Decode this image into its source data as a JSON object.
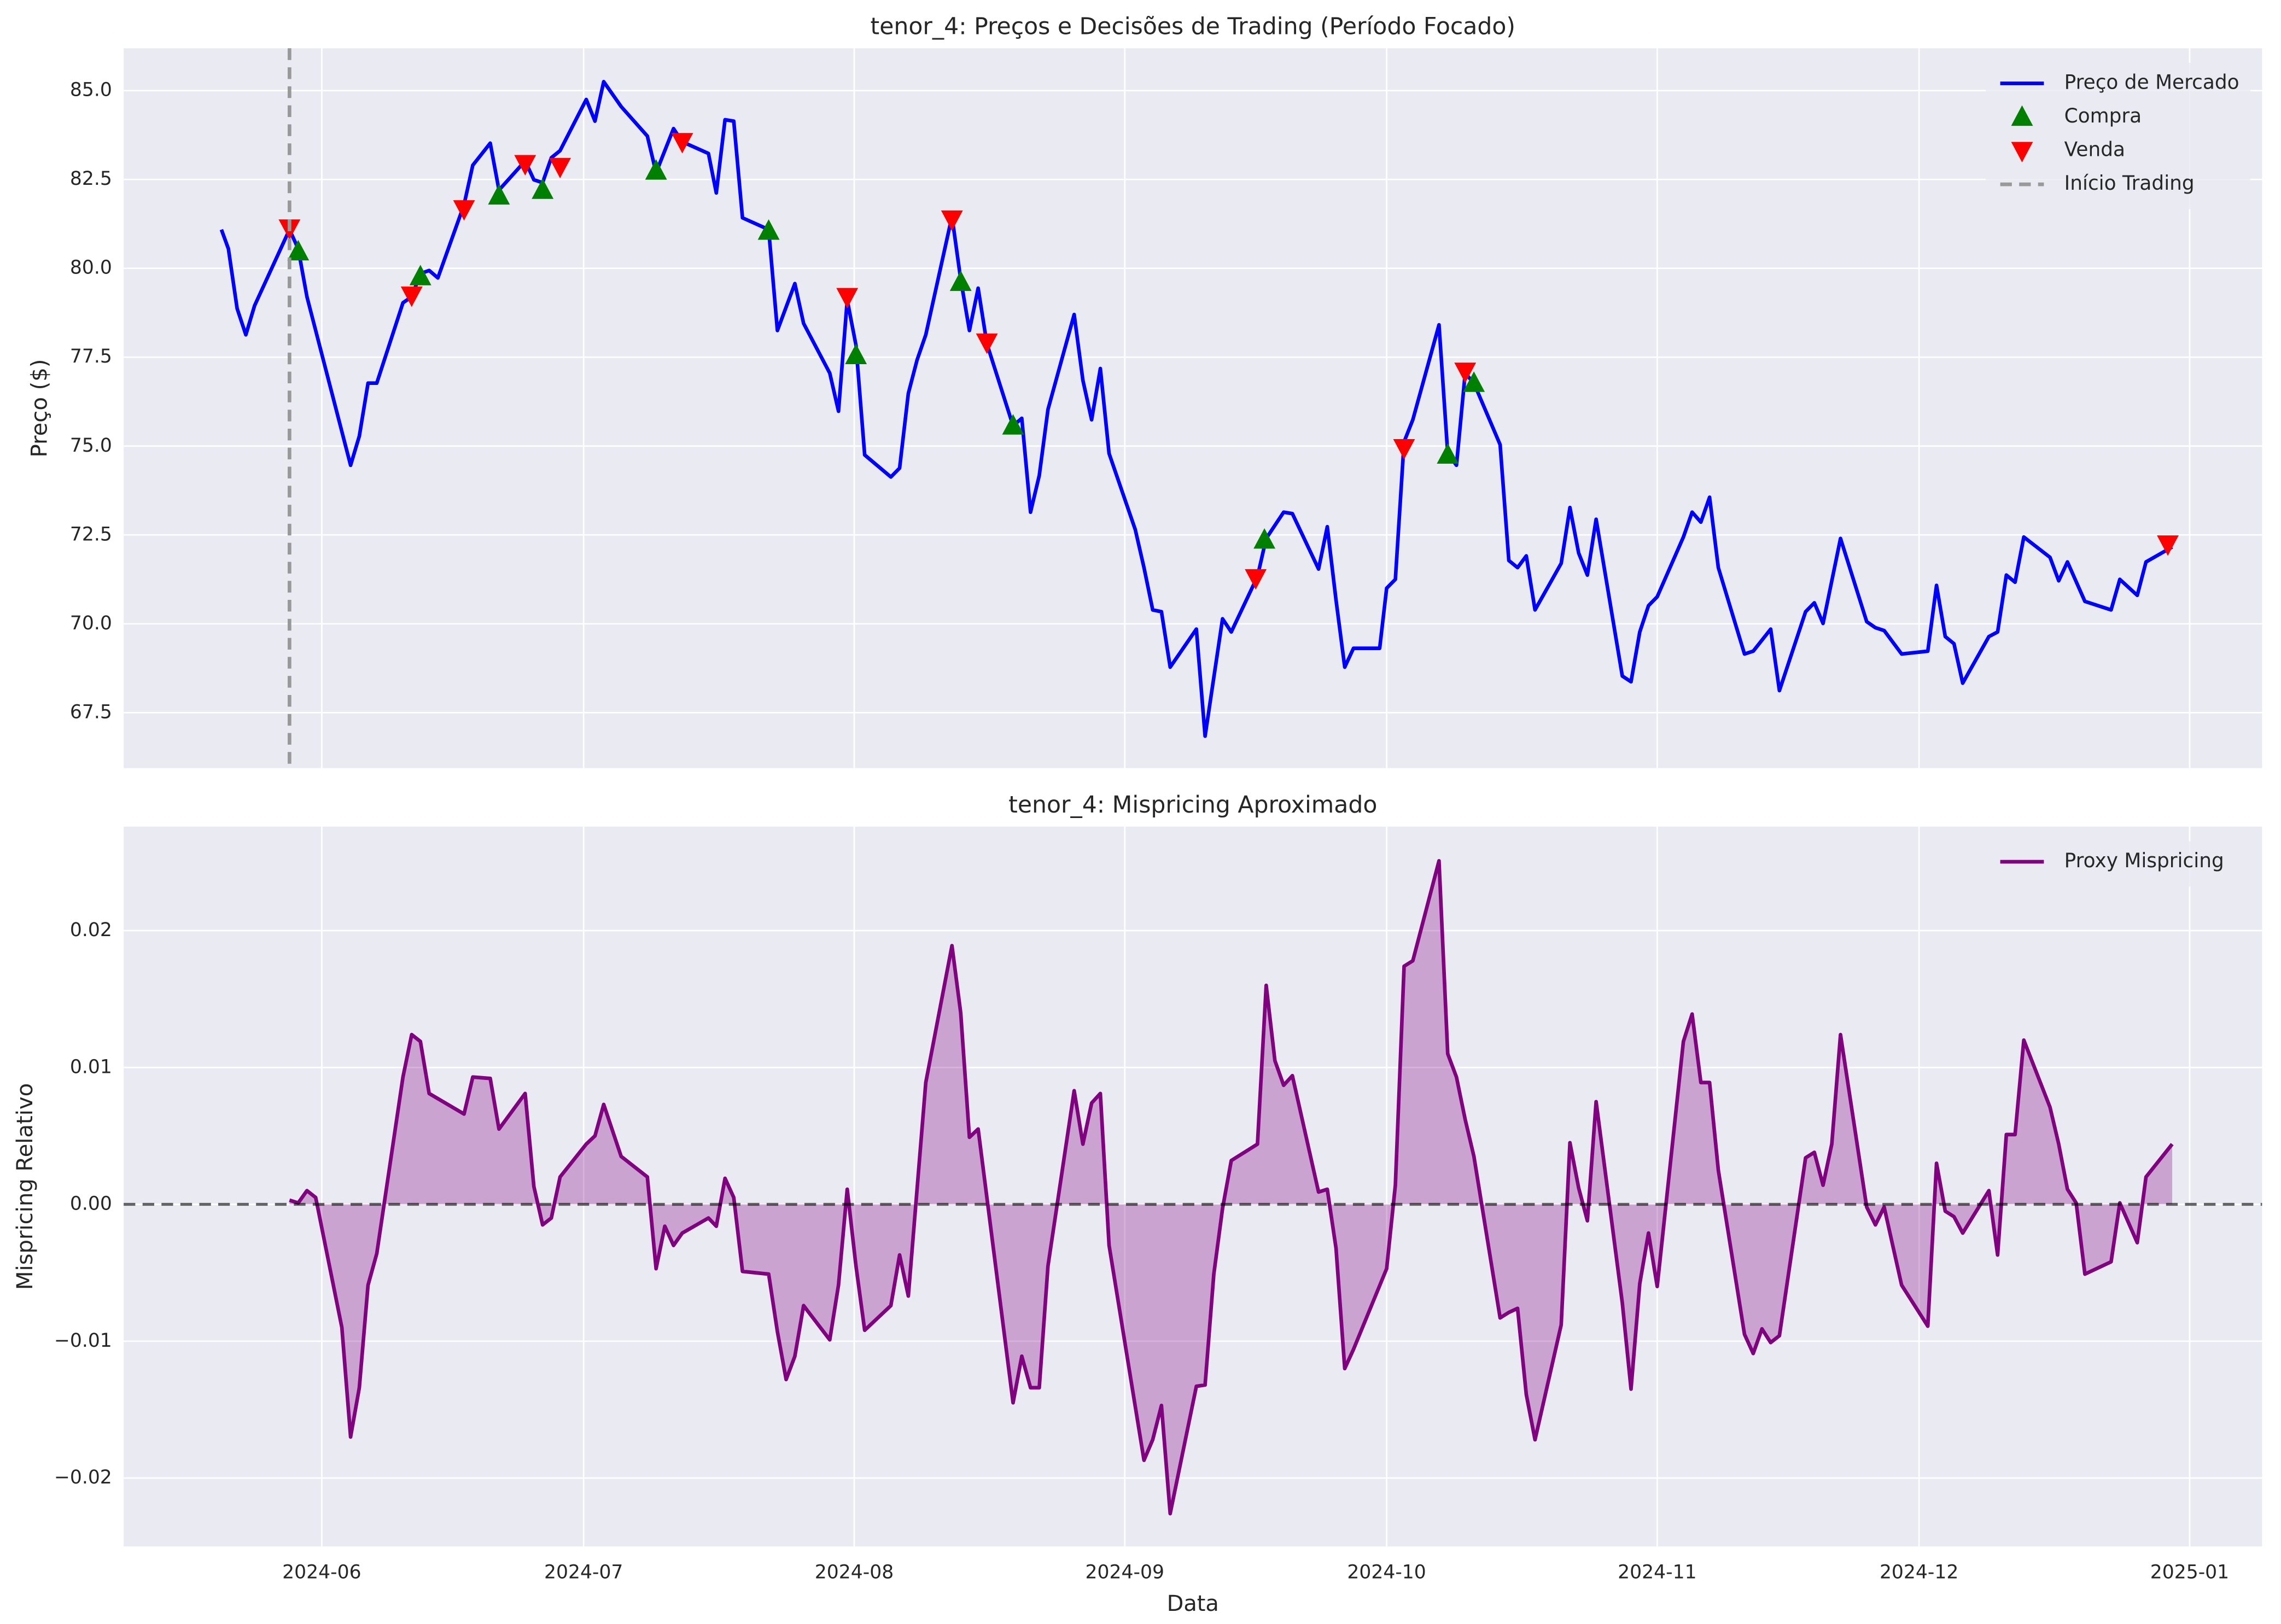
{
  "chart_data": [
    {
      "type": "line",
      "title": "tenor_4: Preços e Decisões de Trading (Período Focado)",
      "ylabel": "Preço ($)",
      "xlim": [
        -22.7,
        222.3
      ],
      "ylim": [
        65.94,
        86.19
      ],
      "yticks": [
        67.5,
        {
          "value": 70,
          "label": "70.0"
        },
        72.5,
        {
          "value": 75,
          "label": "75.0"
        },
        77.5,
        {
          "value": 80,
          "label": "80.0"
        },
        82.5,
        {
          "value": 85,
          "label": "85.0"
        }
      ],
      "grid": true,
      "legend": "upper right",
      "series": [
        {
          "name": "Preço de Mercado",
          "type": "line",
          "color": "#0000ff",
          "x": [
            -11.5,
            -10.7,
            -9.7,
            -8.7,
            -7.7,
            -3.7,
            -2.7,
            -1.7,
            3.3,
            4.3,
            5.3,
            6.3,
            9.3,
            10.3,
            11.3,
            12.3,
            13.3,
            16.3,
            17.3,
            19.3,
            20.3,
            23.3,
            24.3,
            25.3,
            26.3,
            27.3,
            30.3,
            31.3,
            32.3,
            34.3,
            37.3,
            38.3,
            40.3,
            41.3,
            44.3,
            45.2,
            46.2,
            47.2,
            48.2,
            51.2,
            52.2,
            54.2,
            55.2,
            58.2,
            59.2,
            60.2,
            61.2,
            62.2,
            65.2,
            66.2,
            67.2,
            68.2,
            69.2,
            72.2,
            73.2,
            74.2,
            75.2,
            76.2,
            79.2,
            80.2,
            81.2,
            82.2,
            83.2,
            86.2,
            87.2,
            88.2,
            89.2,
            90.2,
            93.2,
            94.2,
            95.2,
            96.2,
            97.2,
            100.2,
            101.2,
            103.2,
            104.2,
            107.2,
            108.2,
            110.2,
            111.2,
            114.2,
            115.2,
            116.2,
            117.2,
            118.2,
            121.2,
            122,
            123,
            124,
            125,
            128,
            129,
            130,
            131,
            132,
            135,
            136,
            137,
            138,
            139,
            142,
            143,
            144,
            145,
            146,
            149,
            150,
            151,
            152,
            153,
            156,
            157,
            158,
            159,
            160,
            163,
            164,
            166,
            167,
            170,
            171,
            172,
            174,
            177,
            178,
            179,
            181,
            184,
            185,
            186,
            187,
            188,
            191,
            192,
            193,
            194,
            195,
            198,
            199,
            200,
            202,
            205,
            206,
            208,
            209,
            212
          ],
          "values": [
            81.09,
            80.55,
            78.87,
            78.13,
            78.95,
            81.09,
            80.55,
            79.2,
            74.46,
            75.28,
            76.77,
            76.77,
            79.03,
            79.2,
            79.85,
            79.94,
            79.73,
            81.79,
            82.9,
            83.52,
            82.2,
            83.02,
            82.49,
            82.41,
            83.11,
            83.31,
            84.75,
            84.14,
            85.25,
            84.55,
            83.72,
            82.69,
            83.93,
            83.56,
            83.23,
            82.12,
            84.18,
            84.14,
            81.42,
            81.09,
            78.25,
            79.57,
            78.45,
            77.05,
            75.98,
            79.11,
            77.84,
            74.75,
            74.13,
            74.38,
            76.48,
            77.42,
            78.13,
            81.46,
            79.69,
            78.25,
            79.44,
            77.88,
            75.57,
            75.78,
            73.14,
            74.17,
            76.03,
            78.7,
            76.85,
            75.74,
            77.18,
            74.79,
            72.65,
            71.58,
            70.39,
            70.34,
            68.78,
            69.85,
            66.84,
            70.14,
            69.77,
            71.33,
            72.4,
            73.14,
            73.1,
            71.54,
            72.73,
            70.67,
            68.78,
            69.31,
            69.31,
            71.0,
            71.25,
            75.12,
            75.74,
            78.41,
            74.79,
            74.46,
            77.05,
            76.77,
            75.04,
            71.78,
            71.58,
            71.91,
            70.39,
            71.7,
            73.27,
            71.99,
            71.37,
            72.94,
            68.53,
            68.37,
            69.77,
            70.51,
            70.76,
            72.44,
            73.14,
            72.86,
            73.56,
            71.58,
            69.15,
            69.23,
            69.85,
            68.12,
            70.34,
            70.59,
            70.01,
            72.4,
            70.06,
            69.89,
            69.81,
            69.15,
            69.23,
            71.08,
            69.64,
            69.44,
            68.33,
            69.64,
            69.77,
            71.37,
            71.17,
            72.44,
            71.87,
            71.21,
            71.74,
            70.63,
            70.39,
            71.25,
            70.8,
            71.74,
            72.16
          ]
        },
        {
          "name": "Compra",
          "type": "scatter",
          "marker": "^",
          "color": "#008000",
          "x": [
            -2.7,
            11.3,
            20.3,
            25.3,
            38.3,
            51.2,
            61.2,
            73.2,
            79.2,
            108,
            129,
            132
          ],
          "values": [
            80.47,
            79.77,
            82.04,
            82.2,
            82.74,
            81.05,
            77.55,
            79.61,
            75.57,
            72.36,
            74.75,
            76.77
          ]
        },
        {
          "name": "Venda",
          "type": "scatter",
          "marker": "v",
          "color": "#ff0000",
          "x": [
            -3.7,
            10.3,
            16.3,
            23.3,
            27.3,
            41.3,
            60.2,
            72.2,
            76.2,
            107,
            124,
            131,
            211.5
          ],
          "values": [
            81.13,
            79.24,
            81.67,
            82.94,
            82.86,
            83.56,
            79.2,
            81.38,
            77.92,
            71.29,
            74.95,
            77.1,
            72.24
          ]
        },
        {
          "name": "Início Trading",
          "type": "vline",
          "color": "#999999",
          "x": -3.7
        }
      ]
    },
    {
      "type": "area",
      "title": "tenor_4: Mispricing Aproximado",
      "xlabel": "Data",
      "ylabel": "Mispricing Relativo",
      "xlim": [
        -22.7,
        222.3
      ],
      "ylim": [
        -0.025,
        0.0276
      ],
      "xticks": [
        {
          "value": 0,
          "label": "2024-06"
        },
        {
          "value": 30,
          "label": "2024-07"
        },
        {
          "value": 61,
          "label": "2024-08"
        },
        {
          "value": 92,
          "label": "2024-09"
        },
        {
          "value": 122,
          "label": "2024-10"
        },
        {
          "value": 153,
          "label": "2024-11"
        },
        {
          "value": 183,
          "label": "2024-12"
        },
        {
          "value": 214,
          "label": "2025-01"
        }
      ],
      "yticks": [
        {
          "value": -0.02,
          "label": "−0.02"
        },
        {
          "value": -0.01,
          "label": "−0.01"
        },
        {
          "value": 0,
          "label": "0.00"
        },
        0.01,
        0.02
      ],
      "hline": 0,
      "grid": true,
      "legend": "upper right",
      "series": [
        {
          "name": "Proxy Mispricing",
          "color": "#800080",
          "x": [
            -3.7,
            -2.7,
            -1.7,
            -0.7,
            2.3,
            3.3,
            4.3,
            5.3,
            6.3,
            9.3,
            10.3,
            11.3,
            12.3,
            16.3,
            17.3,
            19.3,
            20.3,
            23.3,
            24.3,
            25.3,
            26.3,
            27.3,
            30.3,
            31.3,
            32.3,
            34.3,
            37.3,
            38.3,
            39.3,
            40.3,
            41.3,
            44.3,
            45.2,
            46.2,
            47.2,
            48.2,
            51.2,
            52.2,
            53.2,
            54.2,
            55.2,
            58.2,
            59.2,
            60.2,
            61.2,
            62.2,
            65.2,
            66.2,
            67.2,
            69.2,
            72.2,
            73.2,
            74.2,
            75.2,
            79.2,
            80.2,
            81.2,
            82.2,
            83.2,
            86.2,
            87.2,
            88.2,
            89.2,
            90.2,
            94.2,
            95.2,
            96.2,
            97.2,
            100.2,
            101.2,
            102.2,
            103.2,
            104.2,
            107.2,
            108.2,
            109.2,
            110.2,
            111.2,
            114.2,
            115.2,
            116.2,
            117.2,
            118.2,
            122,
            123,
            124,
            125,
            128,
            129,
            130,
            131,
            132,
            135,
            136,
            137,
            138,
            139,
            142,
            143,
            144,
            145,
            146,
            149,
            150,
            151,
            152,
            153,
            156,
            157,
            158,
            159,
            160,
            163,
            164,
            165,
            166,
            167,
            170,
            171,
            172,
            173,
            174,
            177,
            178,
            179,
            181,
            184,
            185,
            186,
            187,
            188,
            191,
            192,
            193,
            194,
            195,
            198,
            199,
            200,
            201,
            202,
            205,
            206,
            208,
            209,
            212
          ],
          "values": [
            0.0003,
            0.0001,
            0.001,
            0.0005,
            -0.009,
            -0.017,
            -0.0134,
            -0.0059,
            -0.0036,
            0.0093,
            0.0124,
            0.0119,
            0.0081,
            0.0066,
            0.0093,
            0.0092,
            0.0055,
            0.0081,
            0.0013,
            -0.0015,
            -0.001,
            0.002,
            0.0044,
            0.005,
            0.0073,
            0.0035,
            0.002,
            -0.0047,
            -0.0016,
            -0.003,
            -0.0021,
            -0.001,
            -0.0016,
            0.0019,
            0.0005,
            -0.0049,
            -0.0051,
            -0.0093,
            -0.0128,
            -0.0111,
            -0.0074,
            -0.0099,
            -0.0059,
            0.0011,
            -0.0045,
            -0.0092,
            -0.0074,
            -0.0037,
            -0.0067,
            0.0089,
            0.0189,
            0.014,
            0.0049,
            0.0055,
            -0.0145,
            -0.0111,
            -0.0134,
            -0.0134,
            -0.0045,
            0.0083,
            0.0044,
            0.0074,
            0.0081,
            -0.003,
            -0.0187,
            -0.0172,
            -0.0147,
            -0.0226,
            -0.0133,
            -0.0132,
            -0.0051,
            -0.0003,
            0.0032,
            0.0044,
            0.016,
            0.0105,
            0.0087,
            0.0094,
            0.0009,
            0.0011,
            -0.0032,
            -0.012,
            -0.0106,
            -0.0047,
            0.0014,
            0.0174,
            0.0178,
            0.0251,
            0.011,
            0.0093,
            0.0062,
            0.0035,
            -0.0083,
            -0.0079,
            -0.0076,
            -0.0139,
            -0.0172,
            -0.0088,
            0.0045,
            0.0012,
            -0.0012,
            0.0075,
            -0.0072,
            -0.0135,
            -0.0058,
            -0.0021,
            -0.006,
            0.0119,
            0.0139,
            0.0089,
            0.0089,
            0.0025,
            -0.0095,
            -0.0109,
            -0.0091,
            -0.0101,
            -0.0096,
            0.0034,
            0.0038,
            0.0014,
            0.0044,
            0.0124,
            -0.0002,
            -0.0015,
            -0.0002,
            -0.0059,
            -0.0089,
            0.003,
            -0.0005,
            -0.0009,
            -0.0021,
            0.001,
            -0.0037,
            0.0051,
            0.0051,
            0.012,
            0.0071,
            0.0044,
            0.0011,
            0.0001,
            -0.0051,
            -0.0042,
            0.0001,
            -0.0028,
            0.002,
            0.0044
          ]
        }
      ]
    }
  ]
}
